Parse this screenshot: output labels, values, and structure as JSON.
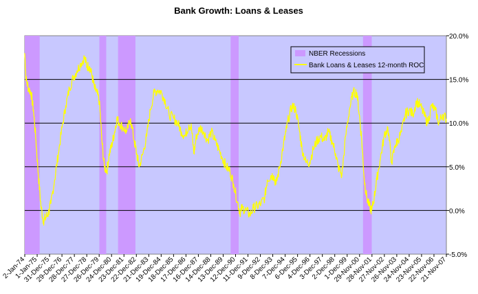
{
  "chart_data": {
    "type": "line",
    "title": "Bank Growth: Loans & Leases",
    "xlabel": "",
    "ylabel": "",
    "y_axis_position": "right",
    "ylim": [
      -5,
      20
    ],
    "y_ticks": [
      "-5.0%",
      "0.0%",
      "5.0%",
      "10.0%",
      "15.0%",
      "20.0%"
    ],
    "y_tick_values": [
      -5,
      0,
      5,
      10,
      15,
      20
    ],
    "x_range": [
      1974.0,
      2007.9
    ],
    "x_tick_labels": [
      "2-Jan-74",
      "1-Jan-75",
      "31-Dec-75",
      "29-Dec-76",
      "28-Dec-77",
      "27-Dec-78",
      "26-Dec-79",
      "24-Dec-80",
      "23-Dec-81",
      "22-Dec-82",
      "21-Dec-83",
      "19-Dec-84",
      "18-Dec-85",
      "17-Dec-86",
      "16-Dec-87",
      "14-Dec-88",
      "13-Dec-89",
      "12-Dec-90",
      "11-Dec-91",
      "9-Dec-92",
      "8-Dec-93",
      "7-Dec-94",
      "6-Dec-95",
      "4-Dec-96",
      "3-Dec-97",
      "2-Dec-98",
      "1-Dec-99",
      "29-Nov-00",
      "28-Nov-01",
      "27-Nov-02",
      "26-Nov-03",
      "24-Nov-04",
      "23-Nov-05",
      "22-Nov-06",
      "21-Nov-07"
    ],
    "grid": "horizontal",
    "plot_background": "#c8c8ff",
    "legend": {
      "placement": "top-right",
      "entries": [
        {
          "label": "NBER Recessions",
          "color": "#cc99ff",
          "kind": "swatch"
        },
        {
          "label": "Bank Loans & Leases 12-month ROC",
          "color": "#ffff00",
          "kind": "line"
        }
      ]
    },
    "recessions": [
      {
        "start": 1974.0,
        "end": 1975.2
      },
      {
        "start": 1980.0,
        "end": 1980.55
      },
      {
        "start": 1981.5,
        "end": 1982.9
      },
      {
        "start": 1990.55,
        "end": 1991.2
      },
      {
        "start": 2001.2,
        "end": 2001.9
      }
    ],
    "series": [
      {
        "name": "Bank Loans & Leases 12-month ROC",
        "color": "#ffff00",
        "x": [
          1974.0,
          1974.1,
          1974.3,
          1974.5,
          1974.7,
          1974.9,
          1975.1,
          1975.3,
          1975.5,
          1975.7,
          1975.9,
          1976.1,
          1976.4,
          1976.7,
          1977.0,
          1977.3,
          1977.6,
          1977.9,
          1978.2,
          1978.5,
          1978.8,
          1979.0,
          1979.2,
          1979.4,
          1979.6,
          1979.8,
          1980.0,
          1980.2,
          1980.4,
          1980.6,
          1980.8,
          1981.0,
          1981.2,
          1981.4,
          1981.6,
          1981.9,
          1982.2,
          1982.5,
          1982.8,
          1983.0,
          1983.2,
          1983.5,
          1983.8,
          1984.1,
          1984.4,
          1984.7,
          1985.0,
          1985.3,
          1985.6,
          1986.0,
          1986.3,
          1986.6,
          1986.9,
          1987.2,
          1987.4,
          1987.6,
          1987.8,
          1988.1,
          1988.4,
          1988.7,
          1989.0,
          1989.3,
          1989.6,
          1989.9,
          1990.2,
          1990.5,
          1990.8,
          1991.1,
          1991.3,
          1991.5,
          1991.8,
          1992.1,
          1992.4,
          1992.7,
          1993.0,
          1993.3,
          1993.5,
          1993.8,
          1994.0,
          1994.2,
          1994.5,
          1994.8,
          1995.0,
          1995.2,
          1995.5,
          1995.8,
          1996.1,
          1996.3,
          1996.6,
          1996.9,
          1997.2,
          1997.5,
          1997.8,
          1998.1,
          1998.4,
          1998.7,
          1999.0,
          1999.2,
          1999.5,
          1999.8,
          2000.1,
          2000.4,
          2000.7,
          2000.9,
          2001.1,
          2001.3,
          2001.5,
          2001.7,
          2001.9,
          2002.1,
          2002.3,
          2002.6,
          2002.9,
          2003.2,
          2003.5,
          2003.8,
          2004.0,
          2004.3,
          2004.6,
          2004.9,
          2005.2,
          2005.5,
          2005.8,
          2006.1,
          2006.4,
          2006.7,
          2007.0,
          2007.3,
          2007.6,
          2007.9
        ],
        "y": [
          18.0,
          15.0,
          14.0,
          13.5,
          11.5,
          8.0,
          4.0,
          0.5,
          -1.2,
          -0.8,
          -0.3,
          0.8,
          3.5,
          6.5,
          9.5,
          12.0,
          14.0,
          15.2,
          16.0,
          16.8,
          17.5,
          16.5,
          16.5,
          15.5,
          14.0,
          13.5,
          12.5,
          8.0,
          5.0,
          4.5,
          6.5,
          7.5,
          8.8,
          10.5,
          10.0,
          9.5,
          9.0,
          10.5,
          8.0,
          6.5,
          5.0,
          6.5,
          8.5,
          11.5,
          13.5,
          13.8,
          13.5,
          12.5,
          11.0,
          10.5,
          10.0,
          9.0,
          8.5,
          9.8,
          9.5,
          6.5,
          8.5,
          9.5,
          9.0,
          8.0,
          9.0,
          8.0,
          7.0,
          6.0,
          5.0,
          4.5,
          3.0,
          1.0,
          -0.2,
          0.3,
          0.0,
          -0.5,
          0.3,
          0.5,
          0.8,
          1.5,
          3.5,
          4.0,
          4.0,
          3.0,
          5.0,
          7.5,
          9.0,
          10.5,
          12.0,
          11.5,
          9.0,
          7.0,
          5.5,
          5.5,
          7.0,
          8.0,
          8.5,
          8.0,
          9.0,
          8.0,
          6.5,
          5.0,
          4.0,
          8.5,
          11.5,
          13.5,
          13.5,
          11.0,
          8.0,
          3.5,
          1.5,
          0.5,
          0.0,
          1.5,
          3.5,
          6.0,
          8.5,
          9.5,
          5.5,
          7.5,
          8.0,
          9.0,
          11.0,
          11.5,
          11.0,
          12.5,
          12.0,
          11.0,
          10.0,
          12.0,
          11.5,
          10.0,
          11.0,
          10.5
        ]
      }
    ]
  }
}
